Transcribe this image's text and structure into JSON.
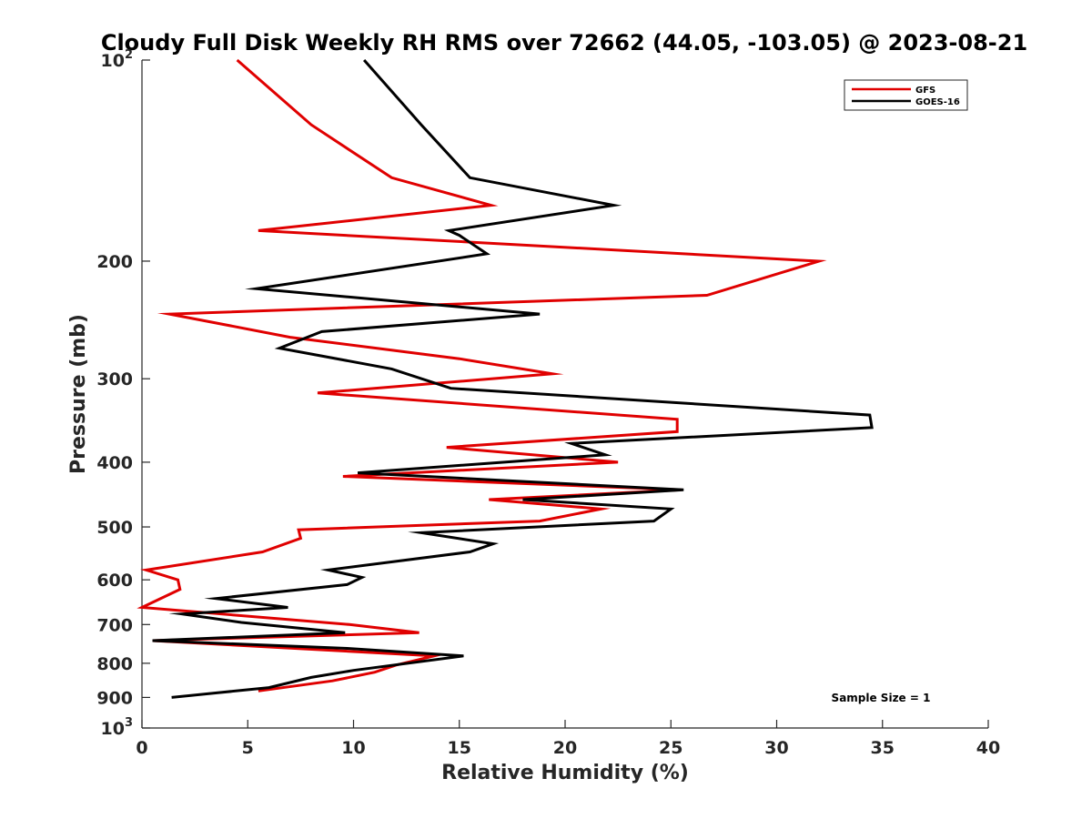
{
  "chart_data": {
    "type": "line",
    "title": "Cloudy Full Disk Weekly RH RMS over 72662 (44.05, -103.05) @ 2023-08-21",
    "xlabel": "Relative Humidity (%)",
    "ylabel": "Pressure (mb)",
    "xlim": [
      0,
      40
    ],
    "ylim": [
      100,
      1000
    ],
    "y_scale": "log",
    "y_reversed": true,
    "grid": false,
    "legend_position": "top-right",
    "x_ticks": [
      "0",
      "5",
      "10",
      "15",
      "20",
      "25",
      "30",
      "35",
      "40"
    ],
    "y_ticks": [
      {
        "value": 100,
        "base": "10",
        "exp": "2"
      },
      {
        "value": 200,
        "base": "200",
        "exp": ""
      },
      {
        "value": 300,
        "base": "300",
        "exp": ""
      },
      {
        "value": 400,
        "base": "400",
        "exp": ""
      },
      {
        "value": 500,
        "base": "500",
        "exp": ""
      },
      {
        "value": 600,
        "base": "600",
        "exp": ""
      },
      {
        "value": 700,
        "base": "700",
        "exp": ""
      },
      {
        "value": 800,
        "base": "800",
        "exp": ""
      },
      {
        "value": 900,
        "base": "900",
        "exp": ""
      },
      {
        "value": 1000,
        "base": "10",
        "exp": "3"
      }
    ],
    "series": [
      {
        "name": "GFS",
        "color": "#e00000",
        "points": [
          [
            4.5,
            100
          ],
          [
            8.0,
            125
          ],
          [
            11.8,
            150
          ],
          [
            16.5,
            165
          ],
          [
            5.5,
            180
          ],
          [
            32.0,
            200
          ],
          [
            26.7,
            225
          ],
          [
            1.3,
            240
          ],
          [
            7.0,
            260
          ],
          [
            15.0,
            280
          ],
          [
            19.4,
            295
          ],
          [
            8.3,
            315
          ],
          [
            25.3,
            345
          ],
          [
            25.3,
            360
          ],
          [
            14.4,
            380
          ],
          [
            22.5,
            400
          ],
          [
            9.5,
            420
          ],
          [
            25.5,
            440
          ],
          [
            16.4,
            455
          ],
          [
            21.7,
            470
          ],
          [
            18.8,
            490
          ],
          [
            7.4,
            505
          ],
          [
            7.5,
            520
          ],
          [
            5.7,
            545
          ],
          [
            0.2,
            580
          ],
          [
            1.7,
            600
          ],
          [
            1.8,
            620
          ],
          [
            0.0,
            660
          ],
          [
            9.8,
            700
          ],
          [
            13.1,
            720
          ],
          [
            0.5,
            740
          ],
          [
            13.8,
            780
          ],
          [
            12.0,
            805
          ],
          [
            11.0,
            825
          ],
          [
            9.0,
            850
          ],
          [
            5.5,
            880
          ]
        ]
      },
      {
        "name": "GOES-16",
        "color": "#000000",
        "points": [
          [
            10.5,
            100
          ],
          [
            13.2,
            125
          ],
          [
            15.5,
            150
          ],
          [
            22.3,
            165
          ],
          [
            14.5,
            180
          ],
          [
            15.0,
            183
          ],
          [
            16.3,
            195
          ],
          [
            5.4,
            220
          ],
          [
            18.8,
            240
          ],
          [
            8.5,
            255
          ],
          [
            6.5,
            270
          ],
          [
            11.8,
            290
          ],
          [
            14.6,
            310
          ],
          [
            34.4,
            340
          ],
          [
            34.5,
            355
          ],
          [
            20.3,
            375
          ],
          [
            21.9,
            390
          ],
          [
            10.2,
            415
          ],
          [
            25.6,
            440
          ],
          [
            18.0,
            455
          ],
          [
            25.0,
            470
          ],
          [
            24.2,
            490
          ],
          [
            13.2,
            510
          ],
          [
            16.6,
            530
          ],
          [
            15.5,
            545
          ],
          [
            8.8,
            580
          ],
          [
            10.4,
            595
          ],
          [
            9.7,
            610
          ],
          [
            3.5,
            640
          ],
          [
            6.9,
            660
          ],
          [
            1.9,
            675
          ],
          [
            4.7,
            695
          ],
          [
            9.6,
            720
          ],
          [
            0.5,
            740
          ],
          [
            9.7,
            760
          ],
          [
            15.2,
            780
          ],
          [
            10.0,
            820
          ],
          [
            8.0,
            840
          ],
          [
            6.0,
            870
          ],
          [
            1.4,
            900
          ]
        ]
      }
    ],
    "annotations": [
      {
        "text": "Sample Size = 1"
      }
    ]
  }
}
